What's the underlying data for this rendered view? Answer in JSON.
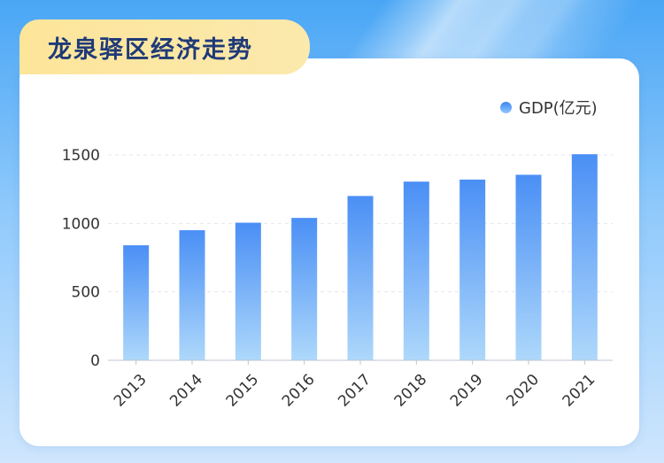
{
  "title": "龙泉驿区经济走势",
  "legend": {
    "label": "GDP(亿元)"
  },
  "colors": {
    "bar_top": "#4a8ff5",
    "bar_bottom": "#aed8fb",
    "title_text": "#1f3a78",
    "title_bg": "#fde59a"
  },
  "chart_data": {
    "type": "bar",
    "title": "龙泉驿区经济走势",
    "xlabel": "",
    "ylabel": "",
    "ylim": [
      0,
      1500
    ],
    "yticks": [
      0,
      500,
      1000,
      1500
    ],
    "yticks_text": [
      "0",
      "500",
      "1000",
      "1500"
    ],
    "categories": [
      "2013",
      "2014",
      "2015",
      "2016",
      "2017",
      "2018",
      "2019",
      "2020",
      "2021"
    ],
    "series": [
      {
        "name": "GDP(亿元)",
        "values": [
          840,
          950,
          1005,
          1040,
          1200,
          1305,
          1320,
          1355,
          1505
        ]
      }
    ],
    "grid": true,
    "legend_position": "top-right"
  }
}
